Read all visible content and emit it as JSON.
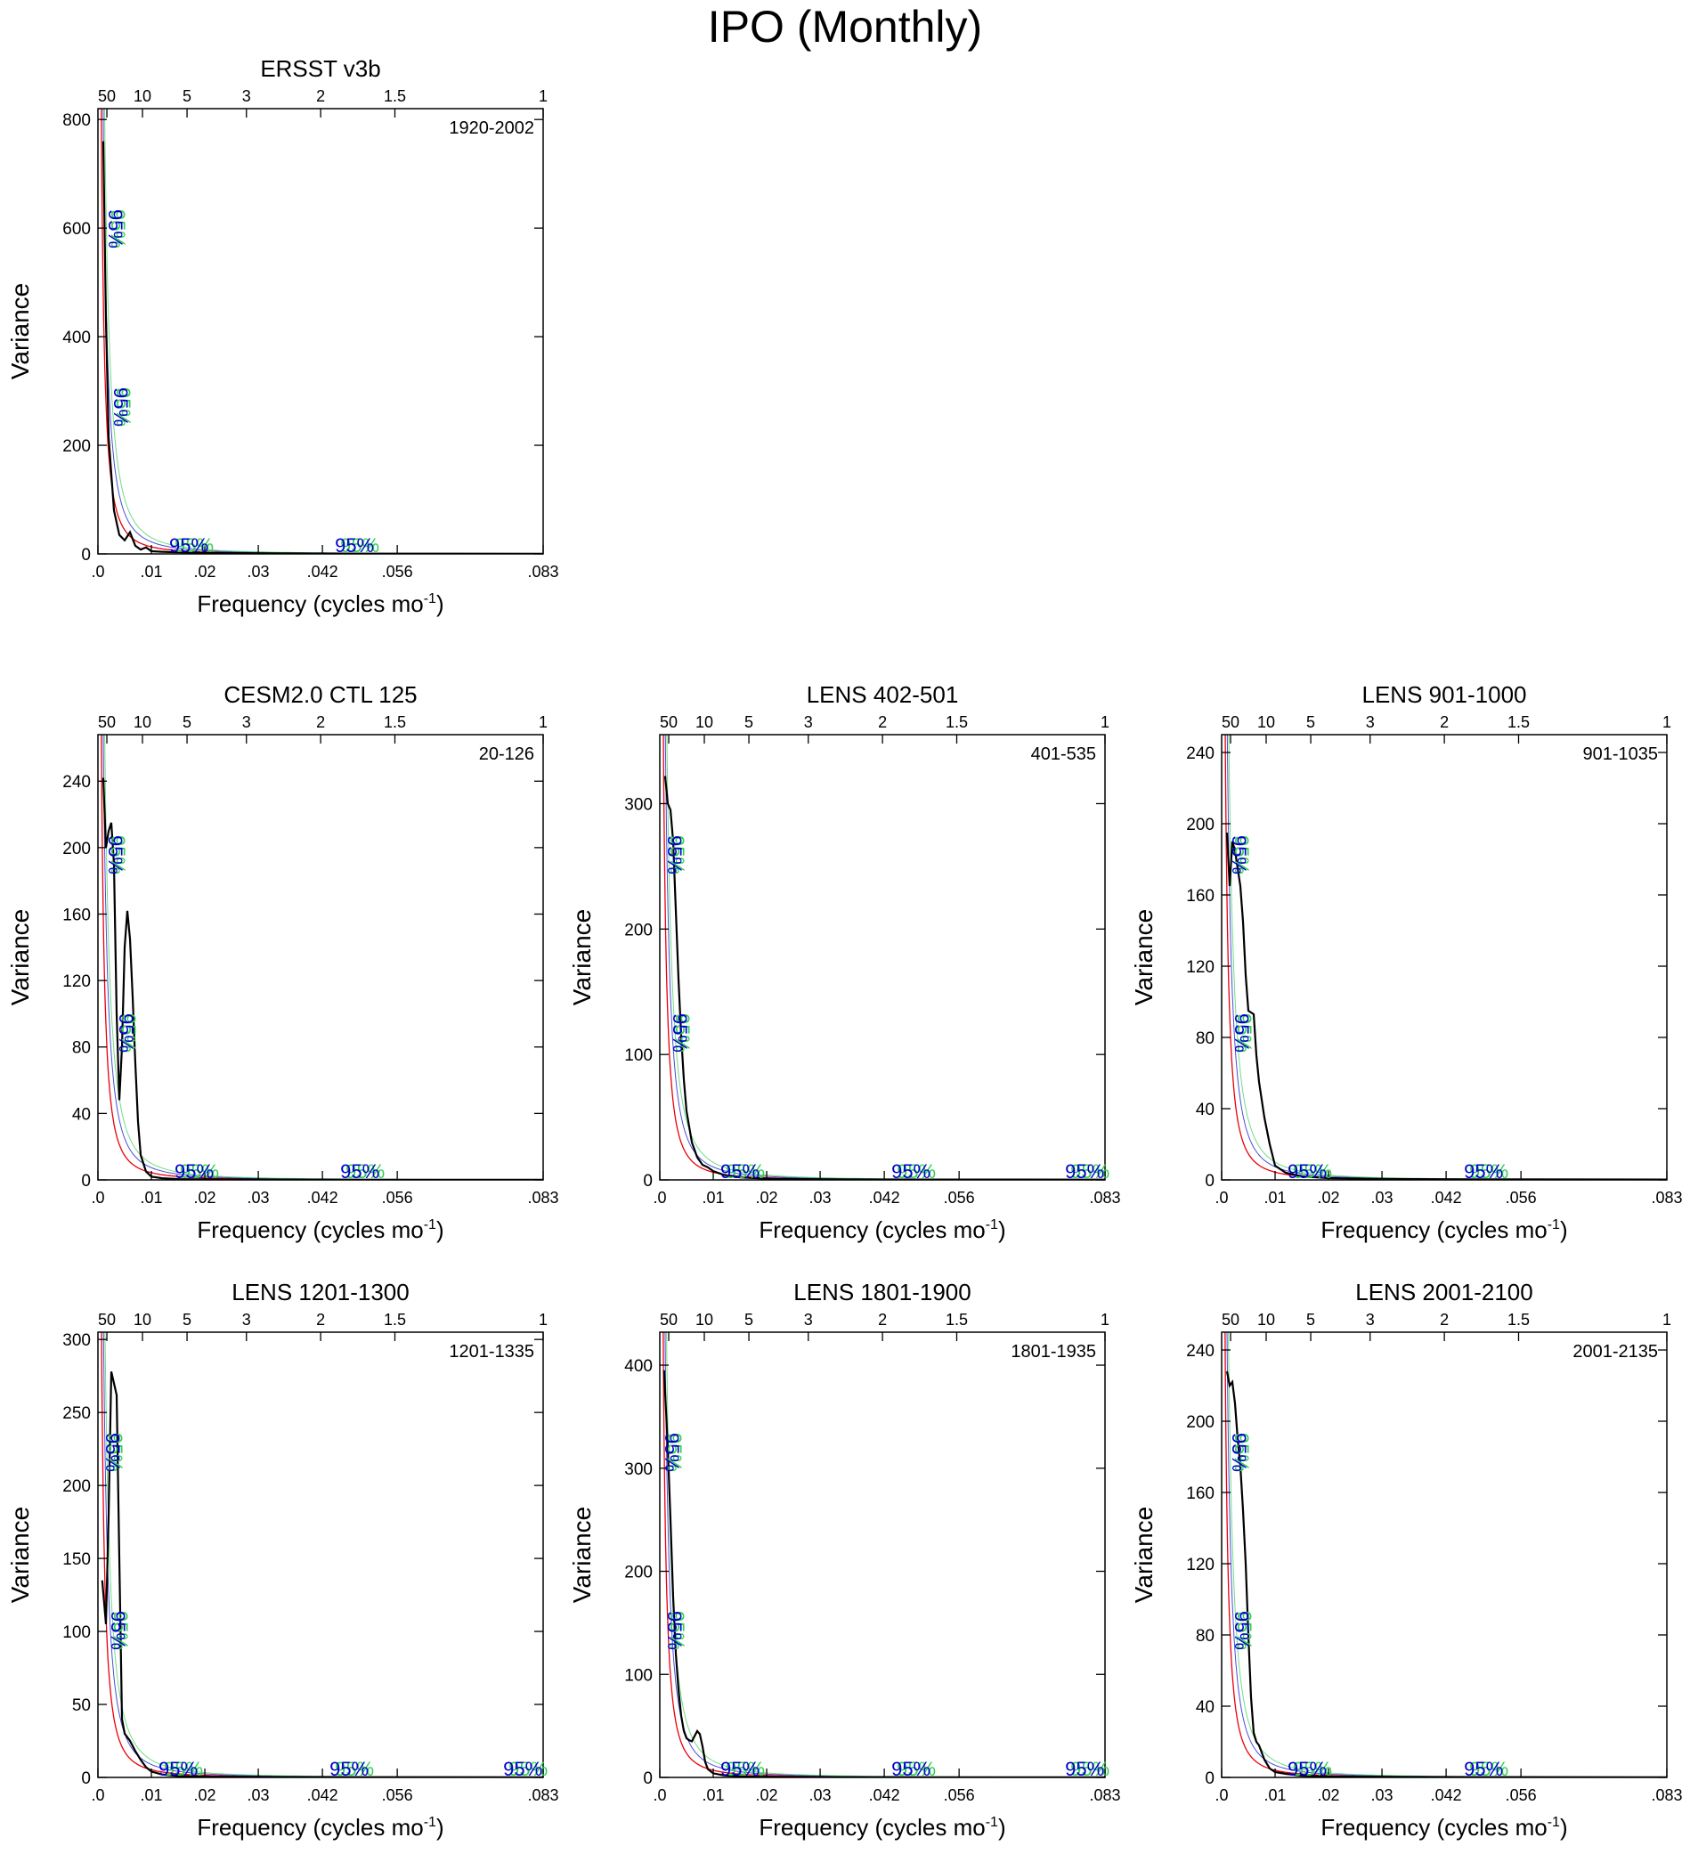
{
  "title": "IPO (Monthly)",
  "shared": {
    "xlabel": "Frequency (cycles mo",
    "xlabel_sup": "-1",
    "xlabel_close": ")",
    "ylabel": "Variance",
    "xlim": [
      0,
      0.0833
    ],
    "bottom_ticks": [
      {
        "v": 0.0,
        "label": ".0"
      },
      {
        "v": 0.01,
        "label": ".01"
      },
      {
        "v": 0.02,
        "label": ".02"
      },
      {
        "v": 0.03,
        "label": ".03"
      },
      {
        "v": 0.042,
        "label": ".042"
      },
      {
        "v": 0.056,
        "label": ".056"
      },
      {
        "v": 0.0833,
        "label": ".083"
      }
    ],
    "top_ticks": [
      {
        "v": 0.00167,
        "label": "50"
      },
      {
        "v": 0.00833,
        "label": "10"
      },
      {
        "v": 0.01667,
        "label": "5"
      },
      {
        "v": 0.02778,
        "label": "3"
      },
      {
        "v": 0.04167,
        "label": "2"
      },
      {
        "v": 0.05556,
        "label": "1.5"
      },
      {
        "v": 0.0833,
        "label": "1"
      }
    ],
    "conf_label": "95%",
    "colors": {
      "spectrum": "#000000",
      "rednoise": "#e8000b",
      "ci95": "#0000cc",
      "ci99": "#30d050"
    }
  },
  "chart_data": [
    {
      "type": "line",
      "title": "ERSST v3b",
      "period": "1920-2002",
      "ylim": [
        0,
        820
      ],
      "yticks": [
        0,
        200,
        400,
        600,
        800
      ],
      "rednoise_scale": 1,
      "conf_labels_x": [
        0.0025,
        0.0035,
        0.017,
        0.048
      ],
      "series": [
        {
          "name": "spectrum",
          "x": [
            0.001,
            0.0015,
            0.002,
            0.003,
            0.004,
            0.005,
            0.006,
            0.007,
            0.008,
            0.009,
            0.01,
            0.012,
            0.015,
            0.02,
            0.03,
            0.05,
            0.0833
          ],
          "y": [
            760,
            430,
            215,
            80,
            35,
            25,
            40,
            15,
            8,
            12,
            5,
            4,
            3,
            2,
            1,
            0.5,
            0.3
          ]
        }
      ],
      "rednoise": {
        "a": 90,
        "b": 0.0042
      }
    },
    {
      "type": "line",
      "title": "CESM2.0 CTL 125",
      "period": "20-126",
      "ylim": [
        0,
        268
      ],
      "yticks": [
        0,
        40,
        80,
        120,
        160,
        200,
        240
      ],
      "conf_labels_x": [
        0.0025,
        0.0045,
        0.018,
        0.049
      ],
      "series": [
        {
          "name": "spectrum",
          "x": [
            0.001,
            0.0015,
            0.002,
            0.0025,
            0.003,
            0.0035,
            0.004,
            0.0045,
            0.005,
            0.0055,
            0.006,
            0.0065,
            0.007,
            0.0075,
            0.008,
            0.009,
            0.01,
            0.012,
            0.015,
            0.02,
            0.03,
            0.05,
            0.0833
          ],
          "y": [
            242,
            200,
            210,
            215,
            190,
            100,
            48,
            80,
            140,
            162,
            145,
            110,
            70,
            35,
            15,
            5,
            2,
            1,
            0.5,
            0.3,
            0.2,
            0.1,
            0.1
          ]
        }
      ],
      "rednoise": {
        "a": 30,
        "b": 0.0042
      }
    },
    {
      "type": "line",
      "title": "LENS 402-501",
      "period": "401-535",
      "ylim": [
        0,
        355
      ],
      "yticks": [
        0,
        100,
        200,
        300
      ],
      "conf_labels_x": [
        0.002,
        0.003,
        0.015,
        0.047,
        0.0795
      ],
      "series": [
        {
          "name": "spectrum",
          "x": [
            0.001,
            0.0015,
            0.002,
            0.0025,
            0.003,
            0.0035,
            0.004,
            0.0045,
            0.005,
            0.006,
            0.007,
            0.008,
            0.009,
            0.01,
            0.012,
            0.015,
            0.02,
            0.03,
            0.05,
            0.0833
          ],
          "y": [
            322,
            300,
            295,
            270,
            215,
            160,
            115,
            80,
            55,
            30,
            18,
            12,
            10,
            7,
            4,
            2,
            1,
            0.5,
            0.3,
            0.2
          ]
        }
      ],
      "rednoise": {
        "a": 42,
        "b": 0.0042
      }
    },
    {
      "type": "line",
      "title": "LENS 901-1000",
      "period": "901-1035",
      "ylim": [
        0,
        250
      ],
      "yticks": [
        0,
        40,
        80,
        120,
        160,
        200,
        240
      ],
      "conf_labels_x": [
        0.0025,
        0.003,
        0.016,
        0.049
      ],
      "series": [
        {
          "name": "spectrum",
          "x": [
            0.001,
            0.0015,
            0.002,
            0.0025,
            0.003,
            0.0035,
            0.004,
            0.0045,
            0.005,
            0.006,
            0.0065,
            0.007,
            0.008,
            0.009,
            0.01,
            0.012,
            0.015,
            0.02,
            0.03,
            0.05,
            0.0833
          ],
          "y": [
            195,
            165,
            190,
            185,
            175,
            165,
            145,
            115,
            95,
            93,
            70,
            55,
            35,
            20,
            8,
            4,
            2,
            1,
            0.5,
            0.3,
            0.2
          ]
        }
      ],
      "rednoise": {
        "a": 30,
        "b": 0.0042
      }
    },
    {
      "type": "line",
      "title": "LENS 1201-1300",
      "period": "1201-1335",
      "ylim": [
        0,
        305
      ],
      "yticks": [
        0,
        50,
        100,
        150,
        200,
        250,
        300
      ],
      "conf_labels_x": [
        0.002,
        0.003,
        0.015,
        0.047,
        0.0795
      ],
      "series": [
        {
          "name": "spectrum",
          "x": [
            0.0008,
            0.0015,
            0.002,
            0.0025,
            0.003,
            0.0035,
            0.004,
            0.0045,
            0.005,
            0.006,
            0.007,
            0.008,
            0.009,
            0.01,
            0.012,
            0.015,
            0.02,
            0.03,
            0.05,
            0.0833
          ],
          "y": [
            135,
            105,
            180,
            278,
            270,
            262,
            150,
            40,
            30,
            25,
            18,
            12,
            7,
            4,
            2,
            1,
            0.5,
            0.3,
            0.2,
            0.1
          ]
        }
      ],
      "rednoise": {
        "a": 36,
        "b": 0.0042
      }
    },
    {
      "type": "line",
      "title": "LENS 1801-1900",
      "period": "1801-1935",
      "ylim": [
        0,
        432
      ],
      "yticks": [
        0,
        100,
        200,
        300,
        400
      ],
      "conf_labels_x": [
        0.0015,
        0.002,
        0.015,
        0.047,
        0.0795
      ],
      "series": [
        {
          "name": "spectrum",
          "x": [
            0.0008,
            0.0015,
            0.002,
            0.0025,
            0.003,
            0.0035,
            0.004,
            0.0045,
            0.005,
            0.0055,
            0.006,
            0.0065,
            0.007,
            0.0075,
            0.008,
            0.0085,
            0.009,
            0.01,
            0.012,
            0.015,
            0.02,
            0.03,
            0.05,
            0.0833
          ],
          "y": [
            395,
            320,
            250,
            175,
            120,
            85,
            60,
            45,
            38,
            36,
            35,
            40,
            45,
            42,
            30,
            15,
            8,
            4,
            2,
            1,
            0.5,
            0.3,
            0.2,
            0.1
          ]
        }
      ],
      "rednoise": {
        "a": 48,
        "b": 0.0042
      }
    },
    {
      "type": "line",
      "title": "LENS 2001-2100",
      "period": "2001-2135",
      "ylim": [
        0,
        250
      ],
      "yticks": [
        0,
        40,
        80,
        120,
        160,
        200,
        240
      ],
      "conf_labels_x": [
        0.0025,
        0.003,
        0.016,
        0.049
      ],
      "series": [
        {
          "name": "spectrum",
          "x": [
            0.001,
            0.0015,
            0.002,
            0.0025,
            0.003,
            0.0035,
            0.004,
            0.0045,
            0.005,
            0.0055,
            0.006,
            0.0065,
            0.007,
            0.008,
            0.009,
            0.01,
            0.012,
            0.015,
            0.02,
            0.03,
            0.05,
            0.0833
          ],
          "y": [
            228,
            220,
            222,
            210,
            190,
            175,
            150,
            120,
            80,
            45,
            25,
            20,
            18,
            10,
            5,
            3,
            2,
            1,
            0.5,
            0.3,
            0.2,
            0.1
          ]
        }
      ],
      "rednoise": {
        "a": 28,
        "b": 0.0042
      }
    }
  ]
}
